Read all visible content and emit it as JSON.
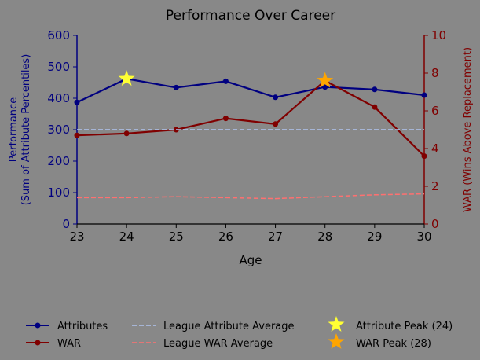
{
  "chart_data": {
    "type": "line",
    "title": "Performance Over Career",
    "xlabel": "Age",
    "ylabel_left": "Performance\n(Sum of Attribute Percentiles)",
    "ylabel_right": "WAR (Wins Above Replacement)",
    "x": [
      23,
      24,
      25,
      26,
      27,
      28,
      29,
      30
    ],
    "xlim": [
      23,
      30
    ],
    "ylim_left": [
      0,
      600
    ],
    "ylim_right": [
      0,
      10
    ],
    "xticks": [
      "23",
      "24",
      "25",
      "26",
      "27",
      "28",
      "29",
      "30"
    ],
    "yticks_left": [
      "0",
      "100",
      "200",
      "300",
      "400",
      "500",
      "600"
    ],
    "yticks_right": [
      "0",
      "2",
      "4",
      "6",
      "8",
      "10"
    ],
    "series": [
      {
        "name": "Attributes",
        "axis": "left",
        "style": "solid-marker",
        "color": "#000080",
        "values": [
          387,
          462,
          434,
          454,
          403,
          436,
          428,
          410
        ]
      },
      {
        "name": "WAR",
        "axis": "right",
        "style": "solid-marker",
        "color": "#800000",
        "values": [
          4.7,
          4.8,
          5.0,
          5.6,
          5.3,
          7.6,
          6.2,
          3.6
        ]
      },
      {
        "name": "League Attribute Average",
        "axis": "left",
        "style": "dashed",
        "color": "#b0c4f0",
        "values": [
          300,
          300,
          300,
          300,
          300,
          300,
          300,
          300
        ]
      },
      {
        "name": "League WAR Average",
        "axis": "right",
        "style": "dashed",
        "color": "#ff7070",
        "values": [
          1.4,
          1.4,
          1.45,
          1.4,
          1.35,
          1.45,
          1.55,
          1.6
        ]
      }
    ],
    "peaks": [
      {
        "name": "Attribute Peak (24)",
        "axis": "left",
        "x": 24,
        "y": 462,
        "color": "#ffff33"
      },
      {
        "name": "WAR Peak (28)",
        "axis": "right",
        "x": 28,
        "y": 7.6,
        "color": "#ffa500"
      }
    ],
    "legend": {
      "placement": "bottom"
    },
    "grid": false,
    "colors": {
      "background": "#888888",
      "left_axis": "#000080",
      "right_axis": "#800000"
    }
  }
}
